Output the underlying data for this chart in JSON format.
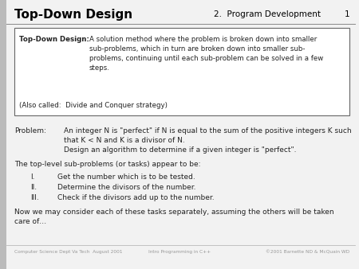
{
  "slide_bg": "#f2f2f2",
  "title": "Top-Down Design",
  "header_right": "2.  Program Development",
  "header_num": "1",
  "title_color": "#000000",
  "header_line_color": "#888888",
  "box_text_label": "Top-Down Design:",
  "box_text_body": "A solution method where the problem is broken down into smaller\nsub-problems, which in turn are broken down into smaller sub-\nproblems, continuing until each sub-problem can be solved in a few\nsteps.",
  "box_also": "(Also called:  Divide and Conquer strategy)",
  "problem_label": "Problem:",
  "problem_body": "An integer N is \"perfect\" if N is equal to the sum of the positive integers K such\nthat K < N and K is a divisor of N.\nDesign an algorithm to determine if a given integer is \"perfect\".",
  "subproblems_intro": "The top-level sub-problems (or tasks) appear to be:",
  "subproblems_nums": [
    "I.",
    "II.",
    "III."
  ],
  "subproblems_texts": [
    "Get the number which is to be tested.",
    "Determine the divisors of the number.",
    "Check if the divisors add up to the number."
  ],
  "closing": "Now we may consider each of these tasks separately, assuming the others will be taken\ncare of…",
  "footer_left": "Computer Science Dept Va Tech  August 2001",
  "footer_center": "Intro Programming in C++",
  "footer_right": "©2001 Barnette ND & McQuain WD",
  "footer_color": "#999999",
  "text_color": "#222222",
  "box_border_color": "#666666",
  "left_bar_color": "#bbbbbb"
}
